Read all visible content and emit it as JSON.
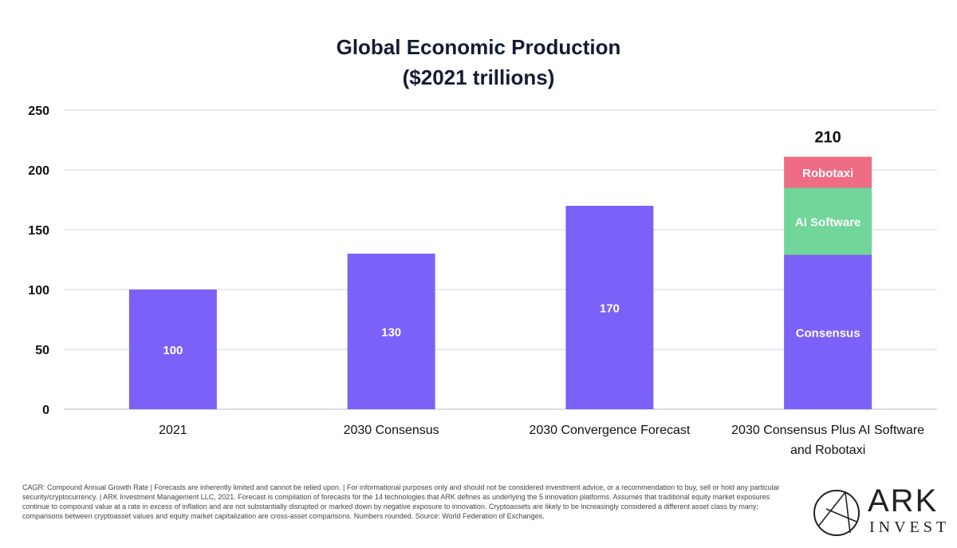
{
  "chart_data": {
    "type": "bar",
    "title_lines": [
      "Global Economic Production",
      "($2021 trillions)"
    ],
    "categories": [
      [
        "2021"
      ],
      [
        "2030 Consensus"
      ],
      [
        "2030 Convergence Forecast"
      ],
      [
        "2030 Consensus Plus AI Software",
        "and Robotaxi"
      ]
    ],
    "ylim": [
      0,
      250
    ],
    "yticks": [
      "0",
      "50",
      "100",
      "150",
      "200",
      "250"
    ],
    "ytick_values": [
      0,
      50,
      100,
      150,
      200,
      250
    ],
    "grid": true,
    "bars": [
      {
        "segments": [
          {
            "value": 100,
            "label": "100",
            "color": "#7b61f8"
          }
        ]
      },
      {
        "segments": [
          {
            "value": 130,
            "label": "130",
            "color": "#7b61f8"
          }
        ]
      },
      {
        "segments": [
          {
            "value": 170,
            "label": "170",
            "color": "#7b61f8"
          }
        ]
      },
      {
        "segments": [
          {
            "value": 129,
            "label": "Consensus",
            "color": "#7b61f8"
          },
          {
            "value": 56,
            "label": "AI Software",
            "color": "#72d59a"
          },
          {
            "value": 26,
            "label": "Robotaxi",
            "color": "#ee6c84"
          }
        ],
        "total_label": "210"
      }
    ]
  },
  "footer": {
    "disclaimer": "CAGR: Compound Annual Growth Rate | Forecasts are inherently limited and cannot be relied upon. | For informational purposes only and should not be considered investment advice, or a recommendation to buy, sell or hold any particular security/cryptocurrency. | ARK Investment Management LLC, 2021. Forecast is compilation of forecasts for the 14 technologies that ARK defines as underlying the 5 innovation platforms. Assumes that traditional equity market exposures continue to compound value at a rate in excess of inflation and are not substantially disrupted or marked down by negative exposure to innovation. Cryptoassets are likely to be increasingly considered a different asset class by many; comparisons between cryptoasset values and equity market capitalization are cross-asset comparisons. Numbers rounded. Source: World Federation of Exchanges."
  },
  "logo": {
    "name": "ARK",
    "sub": "INVEST"
  }
}
